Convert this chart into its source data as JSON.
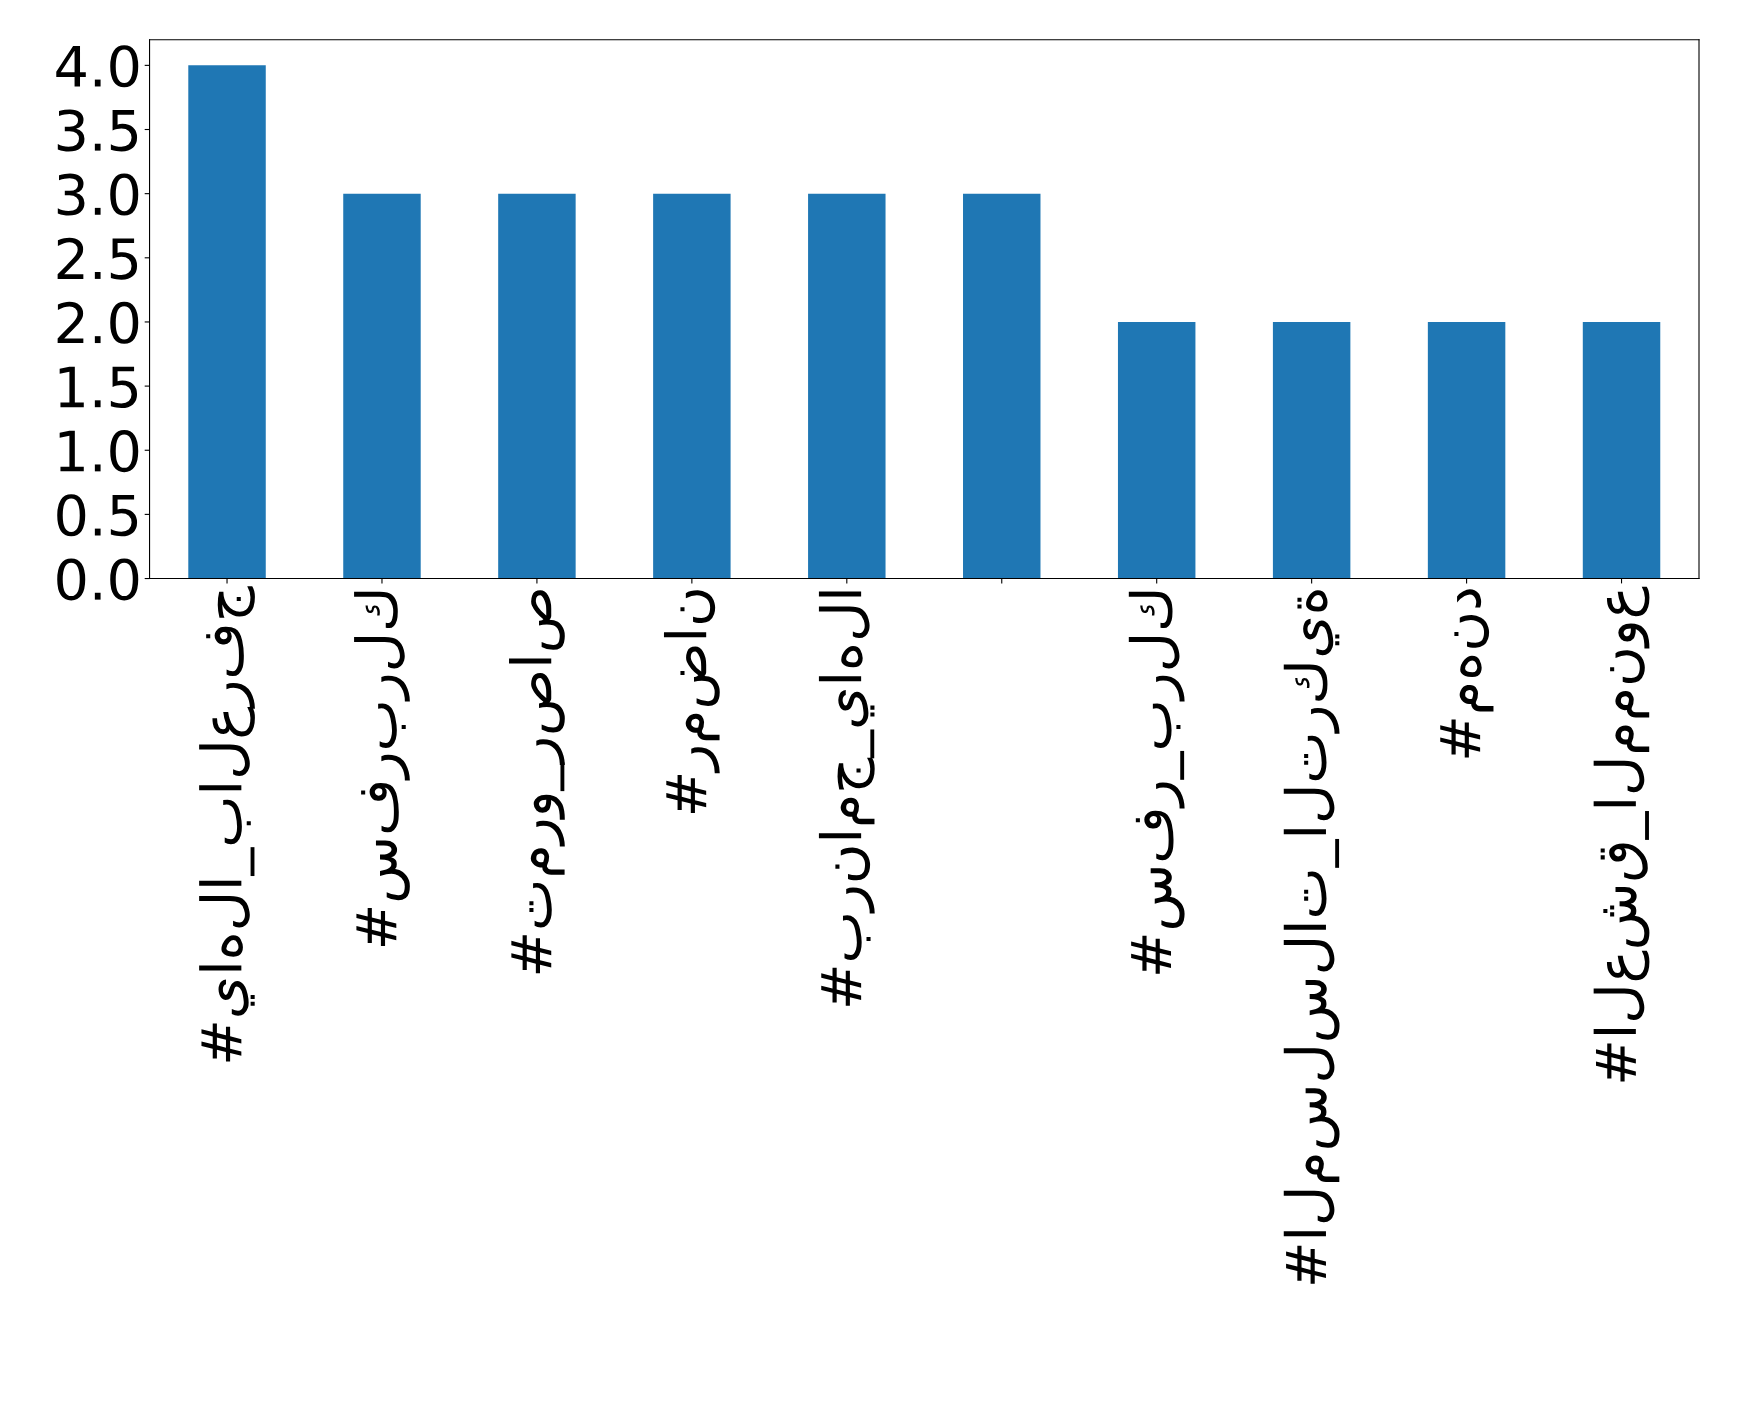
{
  "chart_data": {
    "type": "bar",
    "categories": [
      "#ياهلا_بالعرفج",
      "#سفربرلك",
      "#تمرو_رصاص",
      "#رمضان",
      "#برنامج_ياهلا",
      null,
      "#سفر_برلك",
      "#المسلسلات_التركية",
      "#مهند",
      "#العشق_الممنوع"
    ],
    "values": [
      4,
      3,
      3,
      3,
      3,
      3,
      2,
      2,
      2,
      2
    ],
    "color": "#1f77b4",
    "ylim": [
      0,
      4.2
    ],
    "yticks": [
      {
        "value": 0,
        "label": "0.0"
      },
      {
        "value": 0.5,
        "label": "0.5"
      },
      {
        "value": 1,
        "label": "1.0"
      },
      {
        "value": 1.5,
        "label": "1.5"
      },
      {
        "value": 2,
        "label": "2.0"
      },
      {
        "value": 2.5,
        "label": "2.5"
      },
      {
        "value": 3,
        "label": "3.0"
      },
      {
        "value": 3.5,
        "label": "3.5"
      },
      {
        "value": 4,
        "label": "4.0"
      }
    ],
    "grid": false,
    "legend": false
  }
}
